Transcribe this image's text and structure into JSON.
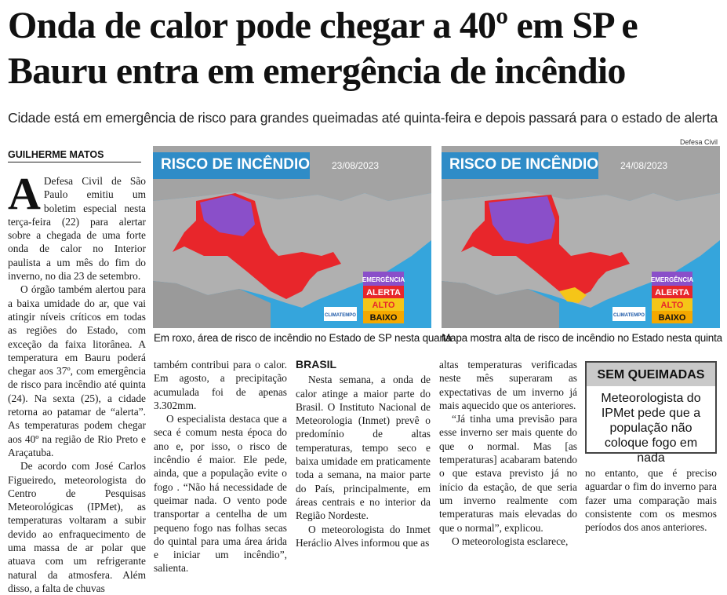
{
  "headline": "Onda de calor pode chegar a 40º em SP e Bauru entra em emergência de incêndio",
  "subhead": "Cidade está em emergência de risco para grandes queimadas até quinta-feira e depois passará para o estado de alerta",
  "byline": "GUILHERME MATOS",
  "photo_credit": "Defesa Civil",
  "maps": [
    {
      "title": "RISCO DE INCÊNDIO",
      "date": "23/08/2023",
      "legend": [
        "EMERGÊNCIA",
        "ALERTA",
        "ALTO",
        "BAIXO"
      ],
      "logo": "CLIMATEMPO",
      "caption": "Em roxo, área de risco de incêndio no Estado de SP nesta quarta"
    },
    {
      "title": "RISCO DE INCÊNDIO",
      "date": "24/08/2023",
      "legend": [
        "EMERGÊNCIA",
        "ALERTA",
        "ALTO",
        "BAIXO"
      ],
      "logo": "CLIMATEMPO",
      "caption": "Mapa mostra alta de risco de incêndio no Estado nesta quinta"
    }
  ],
  "colors": {
    "emergencia": "#8a4fc9",
    "alerta": "#e8262b",
    "alto": "#f5c518",
    "baixo": "#f5a800",
    "sea": "#35a5dc",
    "land": "#a8a8a8"
  },
  "article": {
    "dropcap": "A",
    "col1": [
      "Defesa Civil de São Paulo emitiu um boletim especial nesta terça-feira (22) para alertar sobre a chegada de uma forte onda de calor no Interior paulista a um mês do fim do inverno, no dia 23 de setembro.",
      "O órgão também alertou para a baixa umidade do ar, que vai atingir níveis críticos em todas as regiões do Estado, com exceção da faixa litorânea. A temperatura em Bauru poderá chegar aos 37º, com emergência de risco para incêndio até quinta (24). Na sexta (25), a cidade retorna ao patamar de “alerta”. As temperaturas podem chegar aos 40º na região de Rio Preto e Araçatuba.",
      "De acordo com José Carlos Figueiredo, meteorologista do Centro de Pesquisas Meteorológicas (IPMet), as temperaturas voltaram a subir devido ao enfraquecimento de uma massa de ar polar que atuava com um refrigerante natural da atmosfera. Além disso, a falta de chuvas"
    ],
    "col2": [
      "também contribui para o calor. Em agosto, a precipitação acumulada foi de apenas 3.302mm.",
      "O especialista destaca que a seca é comum nesta época do ano e, por isso, o risco de incêndio é maior. Ele pede, ainda, que a população evite o fogo . “Não há necessidade de queimar nada. O vento pode transportar a centelha de um pequeno fogo nas folhas secas do quintal para uma área árida e iniciar um incêndio”, salienta."
    ],
    "section": "BRASIL",
    "col3": [
      "Nesta semana, a onda de calor atinge a maior parte do Brasil. O Instituto Nacional de Meteorologia (Inmet) prevê o predomínio de altas temperaturas, tempo seco e baixa umidade em praticamente toda a semana, na maior parte do País, principalmente, em áreas centrais e no interior da Região Nordeste.",
      "O meteorologista do Inmet Heráclio Alves informou que as"
    ],
    "col4": [
      "altas temperaturas verificadas neste mês superaram as expectativas de um inverno já mais aquecido que os anteriores.",
      "“Já tinha uma previsão para esse inverno ser mais quente do que o normal. Mas [as temperaturas] acabaram batendo o que estava previsto já no início da estação, de que seria um inverno realmente com temperaturas mais elevadas do que o normal”, explicou.",
      "O meteorologista esclarece,"
    ],
    "col5": [
      "no entanto, que é preciso aguardar o fim do inverno para fazer uma comparação mais consistente com os mesmos períodos dos anos anteriores."
    ]
  },
  "sidebox": {
    "title": "SEM QUEIMADAS",
    "text": "Meteorologista do IPMet pede que a população não coloque fogo em nada"
  }
}
